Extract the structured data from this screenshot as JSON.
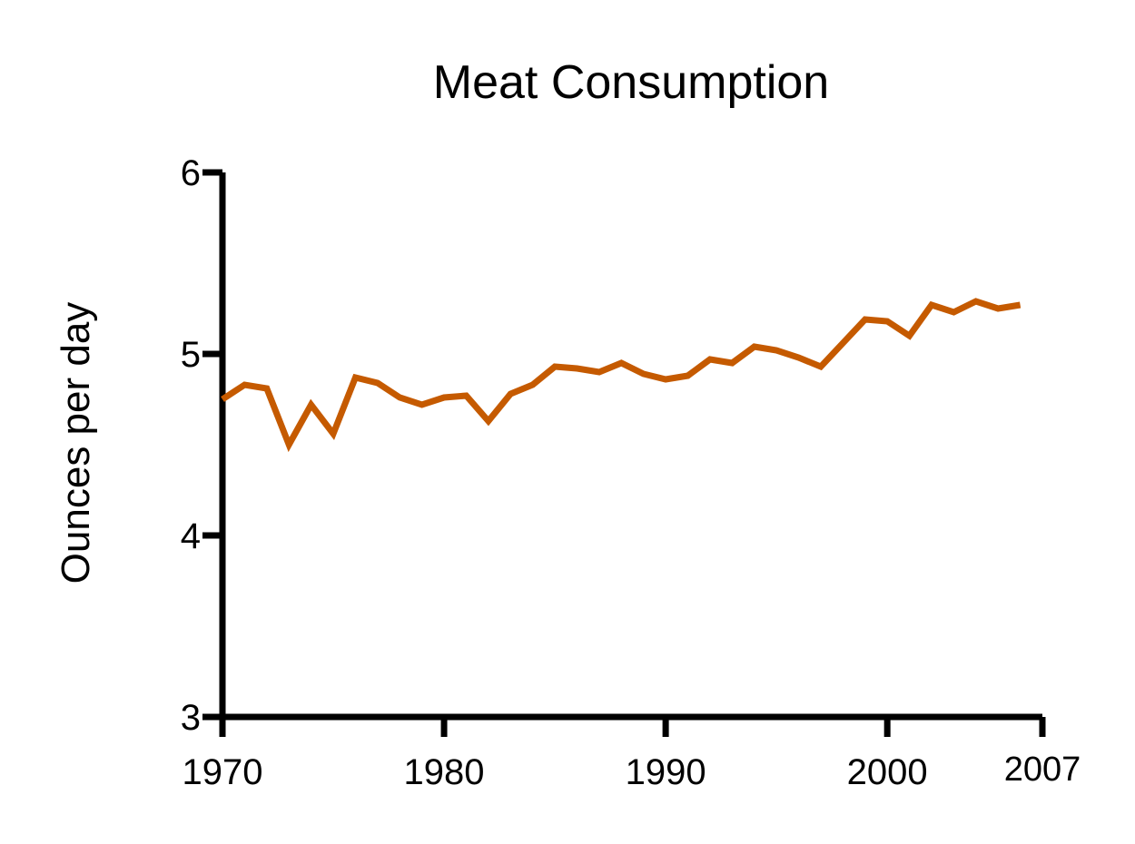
{
  "chart_data": {
    "type": "line",
    "title": "Meat Consumption",
    "xlabel": "",
    "ylabel": "Ounces per day",
    "xlim": [
      1970,
      2007
    ],
    "ylim": [
      3,
      6
    ],
    "x_ticks": [
      "1970",
      "1980",
      "1990",
      "2000",
      "2007"
    ],
    "y_ticks": [
      "3",
      "4",
      "5",
      "6"
    ],
    "grid": false,
    "line_color": "#C55A00",
    "series": [
      {
        "x": [
          1970,
          1971,
          1972,
          1973,
          1974,
          1975,
          1976,
          1977,
          1978,
          1979,
          1980,
          1981,
          1982,
          1983,
          1984,
          1985,
          1986,
          1987,
          1988,
          1989,
          1990,
          1991,
          1992,
          1993,
          1994,
          1995,
          1996,
          1997,
          1998,
          1999,
          2000,
          2001,
          2002,
          2003,
          2004,
          2005,
          2006
        ],
        "values": [
          4.75,
          4.83,
          4.81,
          4.5,
          4.72,
          4.56,
          4.87,
          4.84,
          4.76,
          4.72,
          4.76,
          4.77,
          4.63,
          4.78,
          4.83,
          4.93,
          4.92,
          4.9,
          4.95,
          4.89,
          4.86,
          4.88,
          4.97,
          4.95,
          5.04,
          5.02,
          4.98,
          4.93,
          5.06,
          5.19,
          5.18,
          5.1,
          5.27,
          5.23,
          5.29,
          5.25,
          5.27
        ]
      }
    ]
  }
}
